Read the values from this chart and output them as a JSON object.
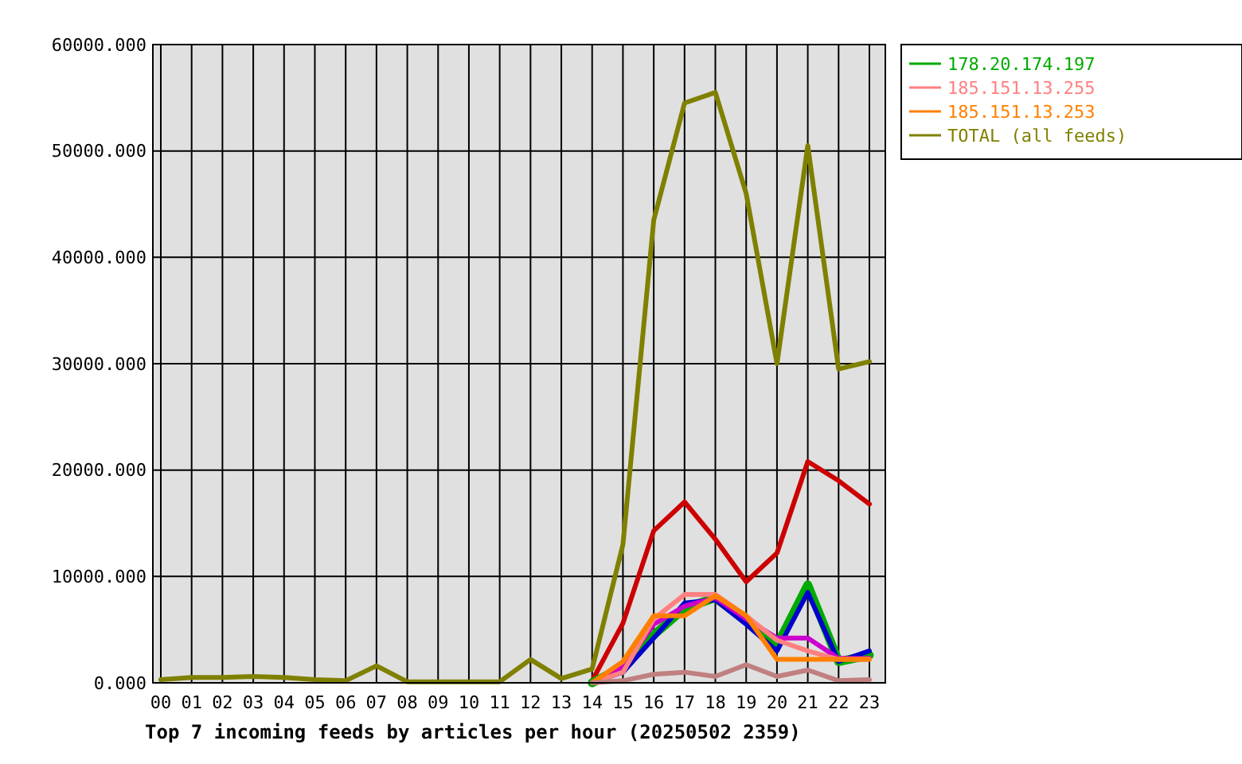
{
  "chart_data": {
    "type": "line",
    "title": "Top 7 incoming feeds by articles per hour (20250502 2359)",
    "categories": [
      "00",
      "01",
      "02",
      "03",
      "04",
      "05",
      "06",
      "07",
      "08",
      "09",
      "10",
      "11",
      "12",
      "13",
      "14",
      "15",
      "16",
      "17",
      "18",
      "19",
      "20",
      "21",
      "22",
      "23"
    ],
    "series": [
      {
        "color": "#cc0000",
        "values": [
          null,
          null,
          null,
          null,
          null,
          null,
          null,
          null,
          null,
          null,
          null,
          null,
          null,
          null,
          200,
          5600,
          14300,
          17000,
          13500,
          9500,
          12200,
          20800,
          19000,
          16800
        ]
      },
      {
        "name": "178.20.174.197",
        "color": "#00aa00",
        "values": [
          null,
          null,
          null,
          null,
          null,
          null,
          null,
          null,
          null,
          null,
          null,
          null,
          null,
          null,
          0,
          1500,
          4500,
          7000,
          8000,
          5800,
          3500,
          9200,
          2000,
          2600
        ]
      },
      {
        "color": "#0000cc",
        "values": [
          null,
          null,
          null,
          null,
          null,
          null,
          null,
          null,
          null,
          null,
          null,
          null,
          null,
          null,
          0,
          1000,
          4200,
          7500,
          7800,
          5500,
          3000,
          8500,
          2000,
          3000
        ]
      },
      {
        "color": "#cc00cc",
        "values": [
          null,
          null,
          null,
          null,
          null,
          null,
          null,
          null,
          null,
          null,
          null,
          null,
          null,
          null,
          0,
          1500,
          5500,
          7200,
          8000,
          6000,
          4200,
          4200,
          2300,
          2300
        ]
      },
      {
        "name": "185.151.13.255",
        "color": "#ff8080",
        "values": [
          null,
          null,
          null,
          null,
          null,
          null,
          null,
          null,
          null,
          null,
          null,
          null,
          null,
          null,
          0,
          1000,
          6000,
          8300,
          8300,
          6300,
          4000,
          3000,
          2200,
          2200
        ]
      },
      {
        "name": "185.151.13.253",
        "color": "#ff8000",
        "values": [
          null,
          null,
          null,
          null,
          null,
          null,
          null,
          null,
          null,
          null,
          null,
          null,
          null,
          null,
          0,
          2000,
          6300,
          6300,
          8200,
          6300,
          2200,
          2200,
          2200,
          2200
        ]
      },
      {
        "color": "#c08080",
        "values": [
          null,
          null,
          null,
          null,
          null,
          null,
          null,
          null,
          null,
          null,
          null,
          null,
          null,
          null,
          0,
          200,
          800,
          1000,
          600,
          1700,
          600,
          1200,
          200,
          300
        ]
      },
      {
        "name": "TOTAL (all feeds)",
        "color": "#808000",
        "values": [
          300,
          500,
          500,
          600,
          500,
          300,
          200,
          1600,
          100,
          100,
          100,
          100,
          2200,
          400,
          1300,
          13000,
          43500,
          54500,
          55500,
          46000,
          30000,
          50500,
          29500,
          30200
        ]
      }
    ],
    "ylim": [
      0,
      60000
    ],
    "yticks": [
      {
        "value": 0,
        "label": "0.000"
      },
      {
        "value": 10000,
        "label": "10000.000"
      },
      {
        "value": 20000,
        "label": "20000.000"
      },
      {
        "value": 30000,
        "label": "30000.000"
      },
      {
        "value": 40000,
        "label": "40000.000"
      },
      {
        "value": 50000,
        "label": "50000.000"
      },
      {
        "value": 60000,
        "label": "60000.000"
      }
    ],
    "grid": true,
    "legend": "right",
    "marker": "none",
    "line_style": "solid"
  }
}
